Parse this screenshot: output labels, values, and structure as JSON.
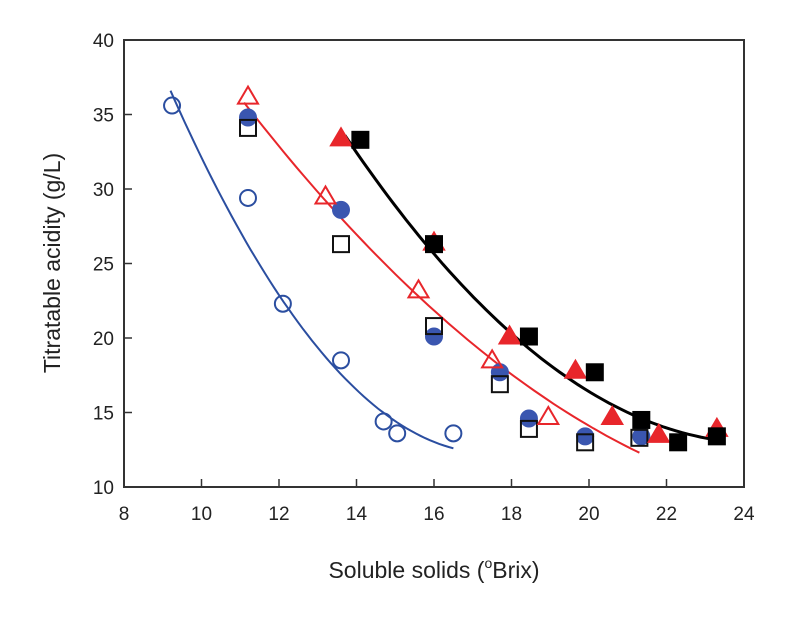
{
  "chart_data": {
    "type": "scatter",
    "title": "",
    "xlabel": "Soluble solids (",
    "xlabel_sup": "o",
    "xlabel_end": "Brix)",
    "ylabel": "Titratable acidity (g/L)",
    "xlim": [
      8,
      24
    ],
    "ylim": [
      10,
      40
    ],
    "xticks": [
      "8",
      "10",
      "12",
      "14",
      "16",
      "18",
      "20",
      "22",
      "24"
    ],
    "yticks": [
      "10",
      "15",
      "20",
      "25",
      "30",
      "35",
      "40"
    ],
    "grid": false,
    "series": [
      {
        "name": "open-circle",
        "marker": "circle",
        "filled": false,
        "color": "#2b4ea0",
        "x": [
          9.24,
          11.2,
          12.1,
          13.6,
          14.7,
          15.05,
          16.5
        ],
        "y": [
          35.6,
          29.4,
          22.3,
          18.5,
          14.4,
          13.6,
          13.6
        ]
      },
      {
        "name": "filled-circle",
        "marker": "circle",
        "filled": true,
        "color": "#3a56b0",
        "x": [
          11.2,
          13.6,
          16.0,
          17.7,
          18.45,
          19.9,
          21.35
        ],
        "y": [
          34.8,
          28.6,
          20.1,
          17.7,
          14.6,
          13.4,
          13.4
        ]
      },
      {
        "name": "open-square",
        "marker": "square",
        "filled": false,
        "color": "#111111",
        "x": [
          11.2,
          13.6,
          16.0,
          17.7,
          18.45,
          19.9,
          21.3
        ],
        "y": [
          34.1,
          26.3,
          20.8,
          16.9,
          13.9,
          13.0,
          13.3
        ]
      },
      {
        "name": "open-triangle",
        "marker": "triangle",
        "filled": false,
        "color": "#e8262b",
        "x": [
          11.2,
          13.2,
          15.6,
          17.5,
          18.95
        ],
        "y": [
          36.2,
          29.5,
          23.2,
          18.5,
          14.7
        ]
      },
      {
        "name": "filled-triangle",
        "marker": "triangle",
        "filled": true,
        "color": "#e8262b",
        "x": [
          13.6,
          16.0,
          17.95,
          19.65,
          20.6,
          21.8,
          23.3
        ],
        "y": [
          33.4,
          26.4,
          20.1,
          17.8,
          14.7,
          13.5,
          13.9
        ]
      },
      {
        "name": "filled-square",
        "marker": "square",
        "filled": true,
        "color": "#000000",
        "x": [
          14.1,
          16.0,
          18.45,
          20.15,
          21.35,
          22.3,
          23.3
        ],
        "y": [
          33.3,
          26.3,
          20.1,
          17.7,
          14.5,
          13.0,
          13.4
        ]
      }
    ],
    "fits": [
      {
        "name": "blue-fit",
        "color": "#2b4ea0",
        "through_x": [
          9.2,
          12.1,
          16.5
        ],
        "through_y": [
          36.6,
          22.5,
          12.6
        ]
      },
      {
        "name": "red-fit",
        "color": "#e8262b",
        "through_x": [
          11.1,
          15.6,
          21.3
        ],
        "through_y": [
          35.8,
          22.8,
          12.3
        ]
      },
      {
        "name": "black-fit",
        "color": "#000000",
        "through_x": [
          13.7,
          17.5,
          23.2
        ],
        "through_y": [
          33.6,
          21.5,
          13.2
        ]
      }
    ]
  }
}
